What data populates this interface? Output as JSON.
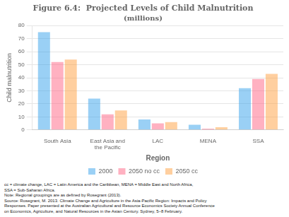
{
  "chart_data": {
    "type": "bar",
    "title": "Figure 6.4:  Projected Levels of Child Malnutrition",
    "subtitle": "(millions)",
    "x_label": "Region",
    "y_label": "Child malnutrition",
    "categories": [
      "South Asia",
      "East Asia and\nthe Pacific",
      "LAC",
      "MENA",
      "SSA"
    ],
    "series": [
      {
        "name": "2000",
        "values": [
          75,
          24,
          8,
          4,
          32
        ]
      },
      {
        "name": "2050 no cc",
        "values": [
          52,
          12,
          5,
          1,
          39
        ]
      },
      {
        "name": "2050 cc",
        "values": [
          54,
          15,
          6,
          2,
          43
        ]
      }
    ],
    "ylim": [
      0,
      80
    ],
    "yticks": [
      0,
      10,
      20,
      30,
      40,
      50,
      60,
      70,
      80
    ],
    "grid": true,
    "legend": "bottom",
    "annotations": [
      "cc = climate change, LAC = Latin America and the Caribbean, MENA = Middle East and North Africa,",
      "SSA = Sub-Saharan Africa.",
      "Note: Regional groupings are as defined by Rosegrant (2013).",
      "Source: Rosegrant, M. 2013. Climate Change and Agriculture in the Asia-Pacific Region: Impacts and Policy",
      "Responses. Paper presented at the Australian Agricultural and Resource Economics Society Annual Conference",
      "on Economics, Agriculture, and Natural Resources in the Asian Century. Sydney, 5–8 February."
    ]
  }
}
